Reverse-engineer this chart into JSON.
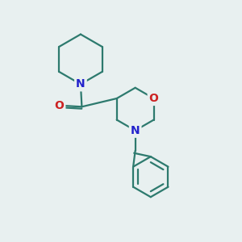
{
  "background_color": "#e8f0f0",
  "bond_color": "#2d7a6e",
  "n_color": "#2222cc",
  "o_color": "#cc2222",
  "line_width": 1.6,
  "font_size_atom": 10,
  "figsize": [
    3.0,
    3.0
  ],
  "dpi": 100,
  "xlim": [
    0,
    10
  ],
  "ylim": [
    0,
    10
  ]
}
